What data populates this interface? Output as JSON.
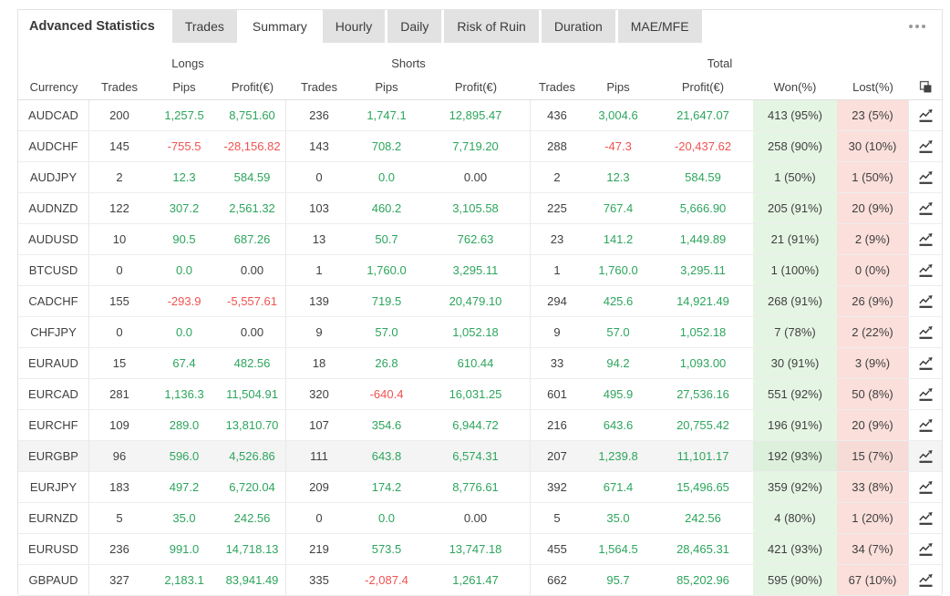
{
  "panel": {
    "title": "Advanced Statistics",
    "tabs": [
      {
        "label": "Trades",
        "active": false
      },
      {
        "label": "Summary",
        "active": true
      },
      {
        "label": "Hourly",
        "active": false
      },
      {
        "label": "Daily",
        "active": false
      },
      {
        "label": "Risk of Ruin",
        "active": false
      },
      {
        "label": "Duration",
        "active": false
      },
      {
        "label": "MAE/MFE",
        "active": false
      }
    ],
    "menu_icon": "ellipsis-icon",
    "copy_icon": "copy-icon",
    "row_chart_icon": "line-chart-icon"
  },
  "table": {
    "group_headers": {
      "longs": "Longs",
      "shorts": "Shorts",
      "total": "Total"
    },
    "columns": {
      "currency": "Currency",
      "trades": "Trades",
      "pips": "Pips",
      "profit": "Profit(€)",
      "won": "Won(%)",
      "lost": "Lost(%)"
    },
    "colors": {
      "positive_text": "#2da55d",
      "negative_text": "#ef5350",
      "neutral_text": "#3f3f3f",
      "won_bg": "#e5f5e3",
      "lost_bg": "#fbdfdb",
      "tab_bg": "#e2e2e2",
      "row_highlight_bg": "#f4f4f4"
    },
    "highlighted_currency": "EURGBP",
    "rows": [
      {
        "currency": "AUDCAD",
        "longs": {
          "trades": "200",
          "pips": "1,257.5",
          "profit": "8,751.60"
        },
        "shorts": {
          "trades": "236",
          "pips": "1,747.1",
          "profit": "12,895.47"
        },
        "total": {
          "trades": "436",
          "pips": "3,004.6",
          "profit": "21,647.07"
        },
        "won": "413 (95%)",
        "lost": "23 (5%)"
      },
      {
        "currency": "AUDCHF",
        "longs": {
          "trades": "145",
          "pips": "-755.5",
          "profit": "-28,156.82"
        },
        "shorts": {
          "trades": "143",
          "pips": "708.2",
          "profit": "7,719.20"
        },
        "total": {
          "trades": "288",
          "pips": "-47.3",
          "profit": "-20,437.62"
        },
        "won": "258 (90%)",
        "lost": "30 (10%)"
      },
      {
        "currency": "AUDJPY",
        "longs": {
          "trades": "2",
          "pips": "12.3",
          "profit": "584.59"
        },
        "shorts": {
          "trades": "0",
          "pips": "0.0",
          "profit": "0.00"
        },
        "total": {
          "trades": "2",
          "pips": "12.3",
          "profit": "584.59"
        },
        "won": "1 (50%)",
        "lost": "1 (50%)"
      },
      {
        "currency": "AUDNZD",
        "longs": {
          "trades": "122",
          "pips": "307.2",
          "profit": "2,561.32"
        },
        "shorts": {
          "trades": "103",
          "pips": "460.2",
          "profit": "3,105.58"
        },
        "total": {
          "trades": "225",
          "pips": "767.4",
          "profit": "5,666.90"
        },
        "won": "205 (91%)",
        "lost": "20 (9%)"
      },
      {
        "currency": "AUDUSD",
        "longs": {
          "trades": "10",
          "pips": "90.5",
          "profit": "687.26"
        },
        "shorts": {
          "trades": "13",
          "pips": "50.7",
          "profit": "762.63"
        },
        "total": {
          "trades": "23",
          "pips": "141.2",
          "profit": "1,449.89"
        },
        "won": "21 (91%)",
        "lost": "2 (9%)"
      },
      {
        "currency": "BTCUSD",
        "longs": {
          "trades": "0",
          "pips": "0.0",
          "profit": "0.00"
        },
        "shorts": {
          "trades": "1",
          "pips": "1,760.0",
          "profit": "3,295.11"
        },
        "total": {
          "trades": "1",
          "pips": "1,760.0",
          "profit": "3,295.11"
        },
        "won": "1 (100%)",
        "lost": "0 (0%)"
      },
      {
        "currency": "CADCHF",
        "longs": {
          "trades": "155",
          "pips": "-293.9",
          "profit": "-5,557.61"
        },
        "shorts": {
          "trades": "139",
          "pips": "719.5",
          "profit": "20,479.10"
        },
        "total": {
          "trades": "294",
          "pips": "425.6",
          "profit": "14,921.49"
        },
        "won": "268 (91%)",
        "lost": "26 (9%)"
      },
      {
        "currency": "CHFJPY",
        "longs": {
          "trades": "0",
          "pips": "0.0",
          "profit": "0.00"
        },
        "shorts": {
          "trades": "9",
          "pips": "57.0",
          "profit": "1,052.18"
        },
        "total": {
          "trades": "9",
          "pips": "57.0",
          "profit": "1,052.18"
        },
        "won": "7 (78%)",
        "lost": "2 (22%)"
      },
      {
        "currency": "EURAUD",
        "longs": {
          "trades": "15",
          "pips": "67.4",
          "profit": "482.56"
        },
        "shorts": {
          "trades": "18",
          "pips": "26.8",
          "profit": "610.44"
        },
        "total": {
          "trades": "33",
          "pips": "94.2",
          "profit": "1,093.00"
        },
        "won": "30 (91%)",
        "lost": "3 (9%)"
      },
      {
        "currency": "EURCAD",
        "longs": {
          "trades": "281",
          "pips": "1,136.3",
          "profit": "11,504.91"
        },
        "shorts": {
          "trades": "320",
          "pips": "-640.4",
          "profit": "16,031.25"
        },
        "total": {
          "trades": "601",
          "pips": "495.9",
          "profit": "27,536.16"
        },
        "won": "551 (92%)",
        "lost": "50 (8%)"
      },
      {
        "currency": "EURCHF",
        "longs": {
          "trades": "109",
          "pips": "289.0",
          "profit": "13,810.70"
        },
        "shorts": {
          "trades": "107",
          "pips": "354.6",
          "profit": "6,944.72"
        },
        "total": {
          "trades": "216",
          "pips": "643.6",
          "profit": "20,755.42"
        },
        "won": "196 (91%)",
        "lost": "20 (9%)"
      },
      {
        "currency": "EURGBP",
        "longs": {
          "trades": "96",
          "pips": "596.0",
          "profit": "4,526.86"
        },
        "shorts": {
          "trades": "111",
          "pips": "643.8",
          "profit": "6,574.31"
        },
        "total": {
          "trades": "207",
          "pips": "1,239.8",
          "profit": "11,101.17"
        },
        "won": "192 (93%)",
        "lost": "15 (7%)"
      },
      {
        "currency": "EURJPY",
        "longs": {
          "trades": "183",
          "pips": "497.2",
          "profit": "6,720.04"
        },
        "shorts": {
          "trades": "209",
          "pips": "174.2",
          "profit": "8,776.61"
        },
        "total": {
          "trades": "392",
          "pips": "671.4",
          "profit": "15,496.65"
        },
        "won": "359 (92%)",
        "lost": "33 (8%)"
      },
      {
        "currency": "EURNZD",
        "longs": {
          "trades": "5",
          "pips": "35.0",
          "profit": "242.56"
        },
        "shorts": {
          "trades": "0",
          "pips": "0.0",
          "profit": "0.00"
        },
        "total": {
          "trades": "5",
          "pips": "35.0",
          "profit": "242.56"
        },
        "won": "4 (80%)",
        "lost": "1 (20%)"
      },
      {
        "currency": "EURUSD",
        "longs": {
          "trades": "236",
          "pips": "991.0",
          "profit": "14,718.13"
        },
        "shorts": {
          "trades": "219",
          "pips": "573.5",
          "profit": "13,747.18"
        },
        "total": {
          "trades": "455",
          "pips": "1,564.5",
          "profit": "28,465.31"
        },
        "won": "421 (93%)",
        "lost": "34 (7%)"
      },
      {
        "currency": "GBPAUD",
        "longs": {
          "trades": "327",
          "pips": "2,183.1",
          "profit": "83,941.49"
        },
        "shorts": {
          "trades": "335",
          "pips": "-2,087.4",
          "profit": "1,261.47"
        },
        "total": {
          "trades": "662",
          "pips": "95.7",
          "profit": "85,202.96"
        },
        "won": "595 (90%)",
        "lost": "67 (10%)"
      }
    ]
  }
}
